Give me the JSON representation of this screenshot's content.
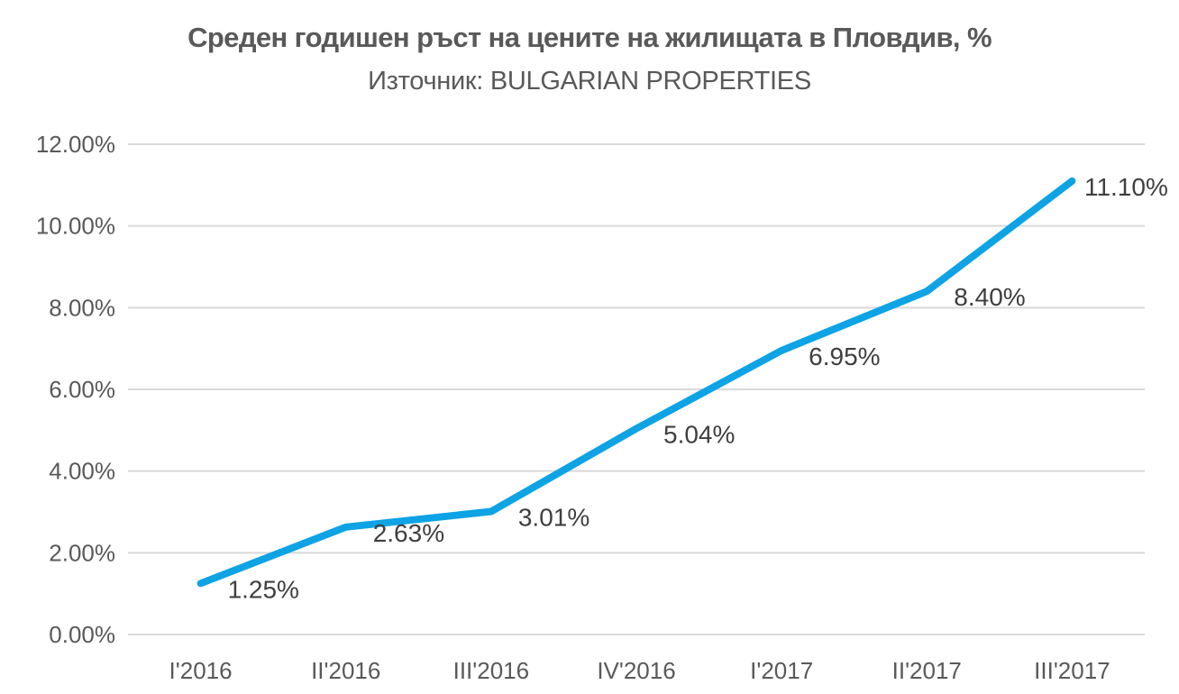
{
  "chart_data": {
    "type": "line",
    "title": "Среден годишен ръст на цените на жилищата в Пловдив, %",
    "subtitle": "Източник: BULGARIAN PROPERTIES",
    "categories": [
      "I'2016",
      "II'2016",
      "III'2016",
      "IV'2016",
      "I'2017",
      "II'2017",
      "III'2017"
    ],
    "values": [
      1.25,
      2.63,
      3.01,
      5.04,
      6.95,
      8.4,
      11.1
    ],
    "data_labels": [
      "1.25%",
      "2.63%",
      "3.01%",
      "5.04%",
      "6.95%",
      "8.40%",
      "11.10%"
    ],
    "y_axis": {
      "min": 0,
      "max": 12,
      "step": 2,
      "tick_labels": [
        "0.00%",
        "2.00%",
        "4.00%",
        "6.00%",
        "8.00%",
        "10.00%",
        "12.00%"
      ]
    },
    "grid": true,
    "legend": "none",
    "colors": {
      "line": "#0EA3E4",
      "gridline": "#D9D9D9",
      "axis_text": "#595959",
      "data_label": "#3F3F3F",
      "title_text": "#595959",
      "background": "#FFFFFF"
    }
  }
}
